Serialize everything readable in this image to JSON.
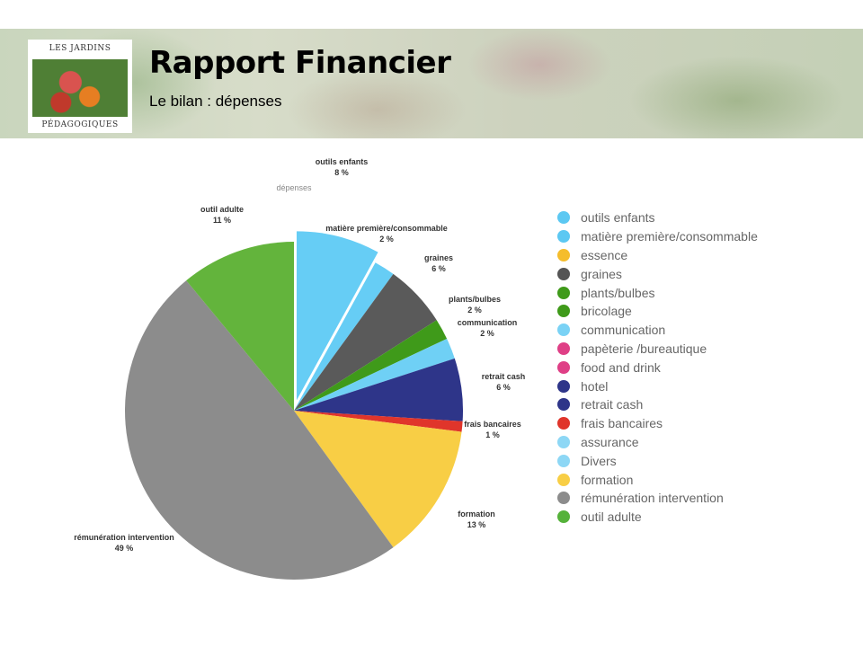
{
  "header": {
    "title": "Rapport Financier",
    "subtitle": "Le bilan : dépenses",
    "logo_top": "LES JARDINS",
    "logo_bottom": "PÉDAGOGIQUES"
  },
  "chart_data": {
    "type": "pie",
    "title": "dépenses",
    "start": "top, clockwise",
    "exploded": [
      "outils enfants"
    ],
    "slices": [
      {
        "label": "outils enfants",
        "value": 8,
        "display": "8 %",
        "color": "#66cdf5"
      },
      {
        "label": "matière première/consommable",
        "value": 2,
        "display": "2 %",
        "color": "#66cdf5"
      },
      {
        "label": "graines",
        "value": 6,
        "display": "6 %",
        "color": "#5a5a5a"
      },
      {
        "label": "plants/bulbes",
        "value": 2,
        "display": "2 %",
        "color": "#3f9a1a"
      },
      {
        "label": "communication",
        "value": 2,
        "display": "2 %",
        "color": "#6fd0f5"
      },
      {
        "label": "retrait cash",
        "value": 6,
        "display": "6 %",
        "color": "#2e3589"
      },
      {
        "label": "frais bancaires",
        "value": 1,
        "display": "1 %",
        "color": "#e0352b"
      },
      {
        "label": "formation",
        "value": 13,
        "display": "13 %",
        "color": "#f8ce45"
      },
      {
        "label": "rémunération intervention",
        "value": 49,
        "display": "49 %",
        "color": "#8c8c8c"
      },
      {
        "label": "outil adulte",
        "value": 11,
        "display": "11 %",
        "color": "#63b43c"
      }
    ],
    "slice_labels": [
      "outils enfants",
      "matière première/consommable",
      "graines",
      "plants/bulbes",
      "communication",
      "retrait cash",
      "frais bancaires",
      "formation",
      "rémunération intervention",
      "outil adulte"
    ],
    "legend": {
      "position": "right",
      "items": [
        {
          "label": "outils enfants",
          "color": "#5cc8f2"
        },
        {
          "label": "matière première/consommable",
          "color": "#5cc8f2"
        },
        {
          "label": "essence",
          "color": "#f5bd2c"
        },
        {
          "label": "graines",
          "color": "#555555"
        },
        {
          "label": "plants/bulbes",
          "color": "#3f9a1a"
        },
        {
          "label": "bricolage",
          "color": "#3f9a1a"
        },
        {
          "label": "communication",
          "color": "#7ad2f5"
        },
        {
          "label": "papèterie /bureautique",
          "color": "#df3f86"
        },
        {
          "label": "food and drink",
          "color": "#df3f86"
        },
        {
          "label": "hotel",
          "color": "#2e3589"
        },
        {
          "label": "retrait cash",
          "color": "#2e3589"
        },
        {
          "label": "frais bancaires",
          "color": "#e0352b"
        },
        {
          "label": "assurance",
          "color": "#8dd7f5"
        },
        {
          "label": "Divers",
          "color": "#8dd7f5"
        },
        {
          "label": " formation",
          "color": "#f8ce45"
        },
        {
          "label": "rémunération intervention",
          "color": "#8c8c8c"
        },
        {
          "label": "outil adulte",
          "color": "#55b23a"
        }
      ]
    }
  }
}
